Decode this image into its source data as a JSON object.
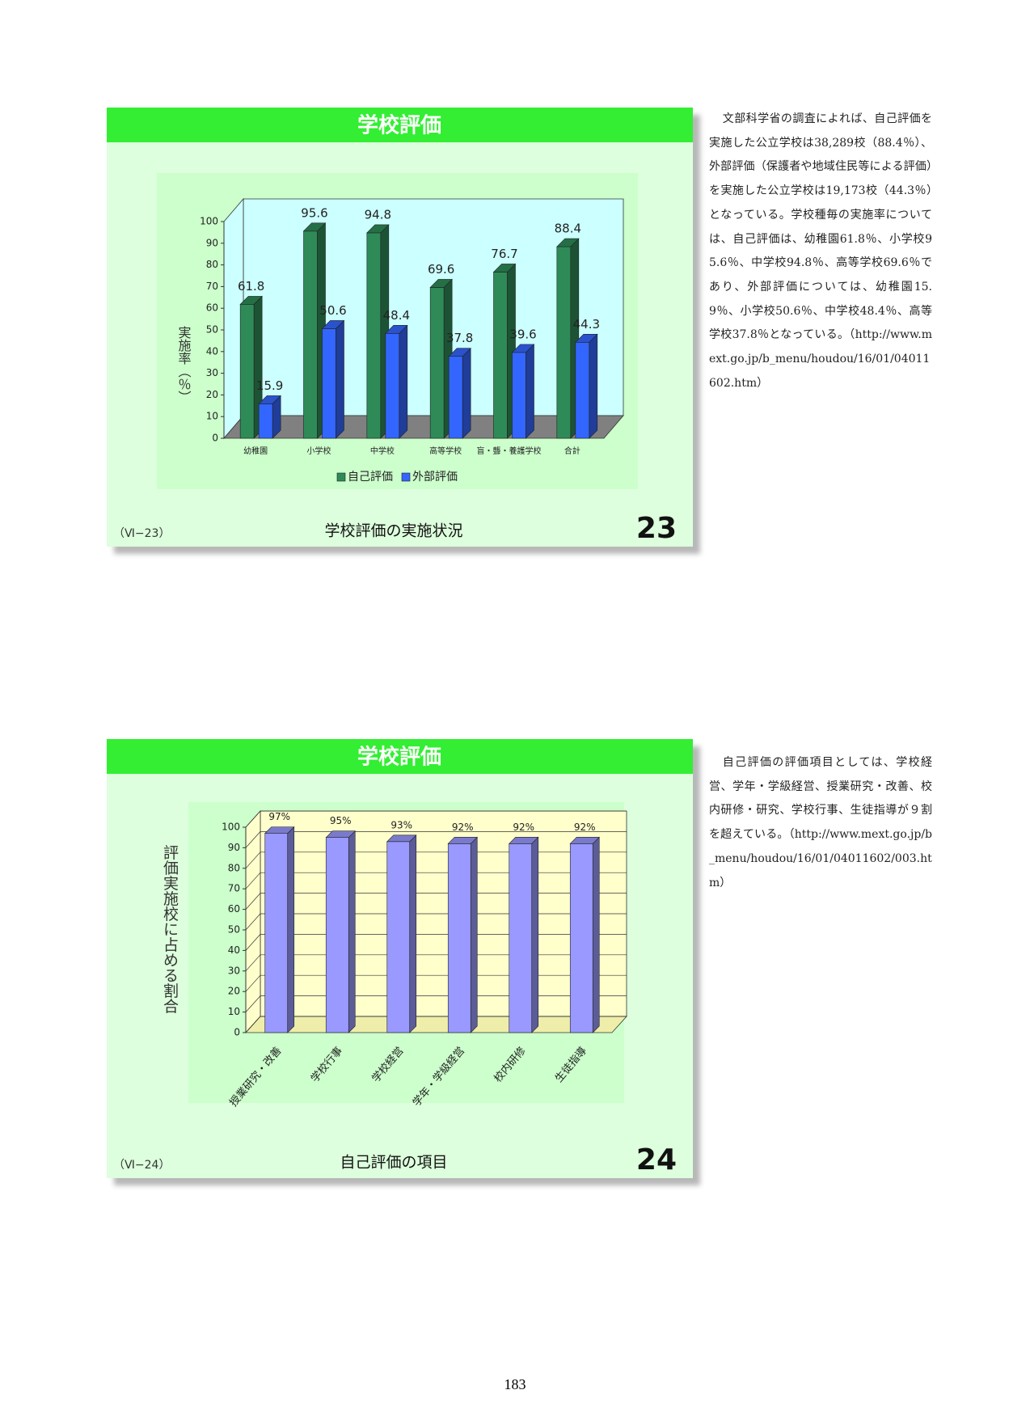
{
  "slides": [
    {
      "title": "学校評価",
      "code": "（Ⅵ−23）",
      "caption": "学校評価の実施状況",
      "number": "23"
    },
    {
      "title": "学校評価",
      "code": "（Ⅵ−24）",
      "caption": "自己評価の項目",
      "number": "24"
    }
  ],
  "chart_data": [
    {
      "type": "bar",
      "categories": [
        "幼稚園",
        "小学校",
        "中学校",
        "高等学校",
        "盲・聾・養護学校",
        "合計"
      ],
      "series": [
        {
          "name": "自己評価",
          "color": "#2e8b57",
          "values": [
            61.8,
            95.6,
            94.8,
            69.6,
            76.7,
            88.4
          ]
        },
        {
          "name": "外部評価",
          "color": "#3366ff",
          "values": [
            15.9,
            50.6,
            48.4,
            37.8,
            39.6,
            44.3
          ]
        }
      ],
      "ylabel": "実施率（％）",
      "ylim": [
        0,
        100
      ],
      "yticks": [
        0,
        10,
        20,
        30,
        40,
        50,
        60,
        70,
        80,
        90,
        100
      ],
      "grid": false,
      "legend": "bottom"
    },
    {
      "type": "bar",
      "categories": [
        "授業研究・改善",
        "学校行事",
        "学校経営",
        "学年・学級経営",
        "校内研修",
        "生徒指導"
      ],
      "values": [
        97,
        95,
        93,
        92,
        92,
        92
      ],
      "value_labels": [
        "97%",
        "95%",
        "93%",
        "92%",
        "92%",
        "92%"
      ],
      "color": "#9999ff",
      "ylabel": "評価実施校に占める割合",
      "ylim": [
        0,
        100
      ],
      "yticks": [
        0,
        10,
        20,
        30,
        40,
        50,
        60,
        70,
        80,
        90,
        100
      ],
      "grid": true
    }
  ],
  "notes": [
    "文部科学省の調査によれば、自己評価を実施した公立学校は38,289校（88.4％）、外部評価（保護者や地域住民等による評価）を実施した公立学校は19,173校（44.3％）となっている。学校種毎の実施率については、自己評価は、幼稚園61.8％、小学校95.6％、中学校94.8％、高等学校69.6％であり、外部評価については、幼稚園15.9％、小学校50.6％、中学校48.4％、高等学校37.8％となっている。（http://www.mext.go.jp/b_menu/houdou/16/01/04011602.htm）",
    "自己評価の評価項目としては、学校経営、学年・学級経営、授業研究・改善、校内研修・研究、学校行事、生徒指導が９割を超えている。（http://www.mext.go.jp/b_menu/houdou/16/01/04011602/003.htm）"
  ],
  "page_number": "183"
}
